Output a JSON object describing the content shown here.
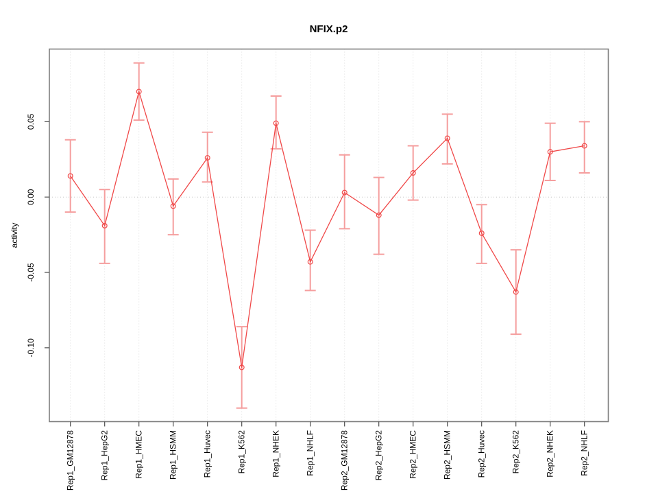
{
  "chart_data": {
    "type": "line",
    "title": "NFIX.p2",
    "xlabel": "",
    "ylabel": "activity",
    "legend_position": "none",
    "grid": {
      "vertical_dotted_per_category": true,
      "horizontal_dotted_at_zero": true
    },
    "categories": [
      "Rep1_GM12878",
      "Rep1_HepG2",
      "Rep1_HMEC",
      "Rep1_HSMM",
      "Rep1_Huvec",
      "Rep1_K562",
      "Rep1_NHEK",
      "Rep1_NHLF",
      "Rep2_GM12878",
      "Rep2_HepG2",
      "Rep2_HMEC",
      "Rep2_HSMM",
      "Rep2_Huvec",
      "Rep2_K562",
      "Rep2_NHEK",
      "Rep2_NHLF"
    ],
    "series": [
      {
        "name": "activity",
        "values": [
          0.014,
          -0.019,
          0.07,
          -0.006,
          0.026,
          -0.113,
          0.049,
          -0.043,
          0.003,
          -0.012,
          0.016,
          0.039,
          -0.024,
          -0.063,
          0.03,
          0.034
        ],
        "lower": [
          -0.01,
          -0.044,
          0.051,
          -0.025,
          0.01,
          -0.14,
          0.032,
          -0.062,
          -0.021,
          -0.038,
          -0.002,
          0.022,
          -0.044,
          -0.091,
          0.011,
          0.016
        ],
        "upper": [
          0.038,
          0.005,
          0.089,
          0.012,
          0.043,
          -0.086,
          0.067,
          -0.022,
          0.028,
          0.013,
          0.034,
          0.055,
          -0.005,
          -0.035,
          0.049,
          0.05
        ]
      }
    ],
    "yticks": [
      {
        "label": "0.05",
        "value": 0.05
      },
      {
        "label": "0.00",
        "value": 0.0
      },
      {
        "label": "-0.05",
        "value": -0.05
      },
      {
        "label": "-0.10",
        "value": -0.1
      }
    ],
    "ylim": [
      -0.149,
      0.0982
    ],
    "marker": "open-circle",
    "colors": {
      "line": "#f04848",
      "marker_stroke": "#f04848",
      "error_bar": "#f59e9e",
      "grid": "#dcdcdc",
      "zero_line": "#c4c4c4",
      "box": "#7f7f7f",
      "tick": "#4d4d4d",
      "text": "#000000",
      "background": "#ffffff"
    }
  }
}
